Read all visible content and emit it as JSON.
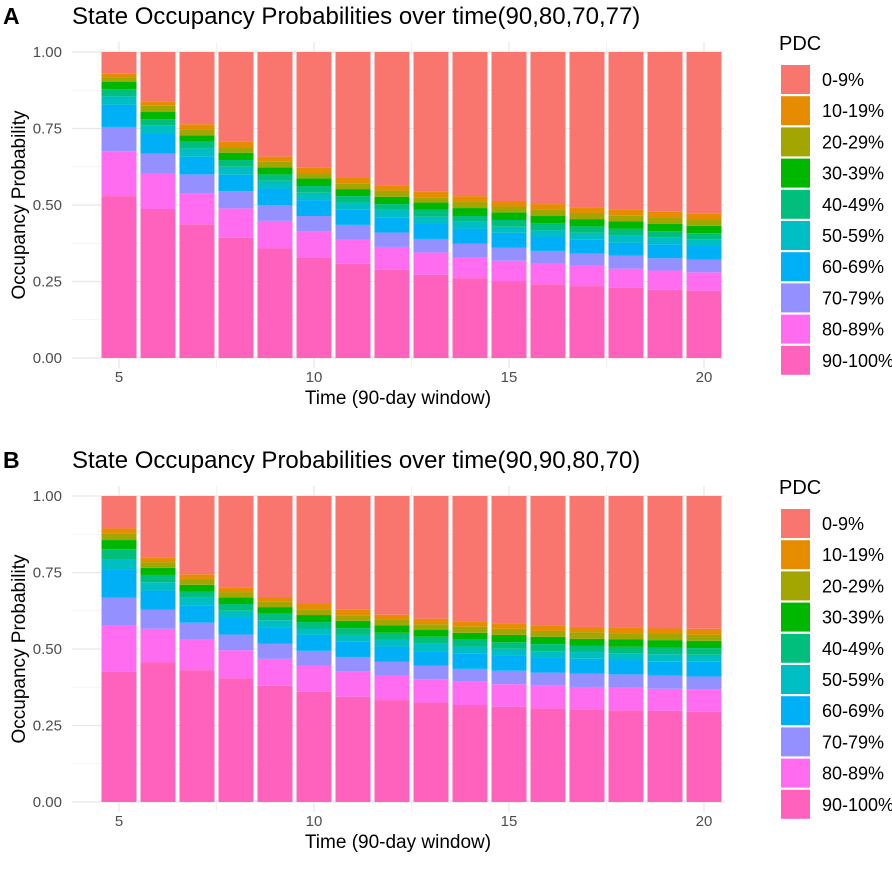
{
  "legend": {
    "title": "PDC",
    "states": [
      "0-9%",
      "10-19%",
      "20-29%",
      "30-39%",
      "40-49%",
      "50-59%",
      "60-69%",
      "70-79%",
      "80-89%",
      "90-100%"
    ],
    "colors": [
      "#F8766D",
      "#E58C00",
      "#A3A500",
      "#00B700",
      "#00BF7D",
      "#00BFC4",
      "#00B0F6",
      "#9590FF",
      "#FF6CF0",
      "#FF62BC"
    ]
  },
  "chart_data": [
    {
      "panel_label": "A",
      "type": "bar",
      "stacked": true,
      "title": "State Occupancy Probabilities over time(90,80,70,77)",
      "xlabel": "Time (90-day window)",
      "ylabel": "Occupancy Probability",
      "ylim": [
        0,
        1
      ],
      "yticks": [
        "0.00",
        "0.25",
        "0.50",
        "0.75",
        "1.00"
      ],
      "xticks": [
        "5",
        "10",
        "15",
        "20"
      ],
      "x": [
        5,
        6,
        7,
        8,
        9,
        10,
        11,
        12,
        13,
        14,
        15,
        16,
        17,
        18,
        19,
        20
      ],
      "legend_position": "right",
      "grid": true,
      "series": [
        {
          "name": "0-9%",
          "values": [
            0.071,
            0.163,
            0.236,
            0.293,
            0.342,
            0.378,
            0.41,
            0.435,
            0.457,
            0.471,
            0.487,
            0.497,
            0.507,
            0.516,
            0.522,
            0.529
          ]
        },
        {
          "name": "10-19%",
          "values": [
            0.011,
            0.013,
            0.017,
            0.019,
            0.017,
            0.019,
            0.019,
            0.018,
            0.018,
            0.019,
            0.018,
            0.019,
            0.019,
            0.019,
            0.019,
            0.02
          ]
        },
        {
          "name": "20-29%",
          "values": [
            0.016,
            0.02,
            0.019,
            0.017,
            0.018,
            0.016,
            0.019,
            0.02,
            0.017,
            0.02,
            0.019,
            0.02,
            0.02,
            0.019,
            0.021,
            0.019
          ]
        },
        {
          "name": "30-39%",
          "values": [
            0.024,
            0.024,
            0.021,
            0.024,
            0.023,
            0.025,
            0.023,
            0.024,
            0.024,
            0.026,
            0.025,
            0.024,
            0.024,
            0.024,
            0.024,
            0.024
          ]
        },
        {
          "name": "40-49%",
          "values": [
            0.023,
            0.021,
            0.022,
            0.022,
            0.021,
            0.022,
            0.021,
            0.019,
            0.022,
            0.019,
            0.022,
            0.022,
            0.021,
            0.022,
            0.021,
            0.02
          ]
        },
        {
          "name": "50-59%",
          "values": [
            0.027,
            0.027,
            0.027,
            0.026,
            0.025,
            0.024,
            0.022,
            0.024,
            0.021,
            0.022,
            0.02,
            0.021,
            0.021,
            0.023,
            0.021,
            0.022
          ]
        },
        {
          "name": "60-69%",
          "values": [
            0.073,
            0.064,
            0.058,
            0.054,
            0.054,
            0.052,
            0.051,
            0.05,
            0.052,
            0.049,
            0.048,
            0.047,
            0.047,
            0.043,
            0.046,
            0.045
          ]
        },
        {
          "name": "70-79%",
          "values": [
            0.079,
            0.065,
            0.061,
            0.056,
            0.052,
            0.051,
            0.049,
            0.047,
            0.044,
            0.044,
            0.043,
            0.041,
            0.04,
            0.042,
            0.04,
            0.041
          ]
        },
        {
          "name": "80-89%",
          "values": [
            0.147,
            0.116,
            0.102,
            0.096,
            0.09,
            0.084,
            0.078,
            0.075,
            0.073,
            0.069,
            0.068,
            0.068,
            0.066,
            0.063,
            0.063,
            0.06
          ]
        },
        {
          "name": "90-100%",
          "values": [
            0.529,
            0.487,
            0.437,
            0.393,
            0.358,
            0.329,
            0.308,
            0.288,
            0.272,
            0.261,
            0.25,
            0.241,
            0.235,
            0.229,
            0.223,
            0.22
          ]
        }
      ]
    },
    {
      "panel_label": "B",
      "type": "bar",
      "stacked": true,
      "title": "State Occupancy Probabilities over time(90,90,80,70)",
      "xlabel": "Time (90-day window)",
      "ylabel": "Occupancy Probability",
      "ylim": [
        0,
        1
      ],
      "yticks": [
        "0.00",
        "0.25",
        "0.50",
        "0.75",
        "1.00"
      ],
      "xticks": [
        "5",
        "10",
        "15",
        "20"
      ],
      "x": [
        5,
        6,
        7,
        8,
        9,
        10,
        11,
        12,
        13,
        14,
        15,
        16,
        17,
        18,
        19,
        20
      ],
      "legend_position": "right",
      "grid": true,
      "series": [
        {
          "name": "0-9%",
          "values": [
            0.106,
            0.2,
            0.256,
            0.298,
            0.33,
            0.353,
            0.372,
            0.388,
            0.401,
            0.409,
            0.417,
            0.422,
            0.428,
            0.43,
            0.433,
            0.434
          ]
        },
        {
          "name": "10-19%",
          "values": [
            0.017,
            0.016,
            0.015,
            0.016,
            0.016,
            0.017,
            0.018,
            0.017,
            0.018,
            0.018,
            0.017,
            0.019,
            0.017,
            0.018,
            0.018,
            0.019
          ]
        },
        {
          "name": "20-29%",
          "values": [
            0.021,
            0.019,
            0.019,
            0.017,
            0.017,
            0.019,
            0.018,
            0.018,
            0.019,
            0.02,
            0.02,
            0.019,
            0.022,
            0.021,
            0.02,
            0.02
          ]
        },
        {
          "name": "30-39%",
          "values": [
            0.03,
            0.023,
            0.022,
            0.022,
            0.022,
            0.023,
            0.024,
            0.024,
            0.022,
            0.023,
            0.024,
            0.024,
            0.023,
            0.024,
            0.024,
            0.024
          ]
        },
        {
          "name": "40-49%",
          "values": [
            0.032,
            0.024,
            0.02,
            0.022,
            0.021,
            0.021,
            0.022,
            0.022,
            0.023,
            0.022,
            0.021,
            0.023,
            0.02,
            0.021,
            0.022,
            0.022
          ]
        },
        {
          "name": "50-59%",
          "values": [
            0.034,
            0.027,
            0.027,
            0.022,
            0.024,
            0.021,
            0.022,
            0.023,
            0.024,
            0.022,
            0.022,
            0.021,
            0.022,
            0.022,
            0.023,
            0.023
          ]
        },
        {
          "name": "60-69%",
          "values": [
            0.092,
            0.062,
            0.055,
            0.056,
            0.052,
            0.052,
            0.05,
            0.05,
            0.047,
            0.051,
            0.05,
            0.049,
            0.048,
            0.047,
            0.047,
            0.048
          ]
        },
        {
          "name": "70-79%",
          "values": [
            0.091,
            0.063,
            0.056,
            0.051,
            0.05,
            0.048,
            0.047,
            0.046,
            0.045,
            0.042,
            0.044,
            0.043,
            0.044,
            0.043,
            0.043,
            0.041
          ]
        },
        {
          "name": "80-89%",
          "values": [
            0.151,
            0.11,
            0.099,
            0.092,
            0.088,
            0.086,
            0.083,
            0.079,
            0.076,
            0.076,
            0.074,
            0.074,
            0.073,
            0.074,
            0.072,
            0.074
          ]
        },
        {
          "name": "90-100%",
          "values": [
            0.426,
            0.456,
            0.431,
            0.404,
            0.38,
            0.36,
            0.344,
            0.333,
            0.325,
            0.317,
            0.311,
            0.306,
            0.303,
            0.3,
            0.298,
            0.295
          ]
        }
      ]
    }
  ]
}
